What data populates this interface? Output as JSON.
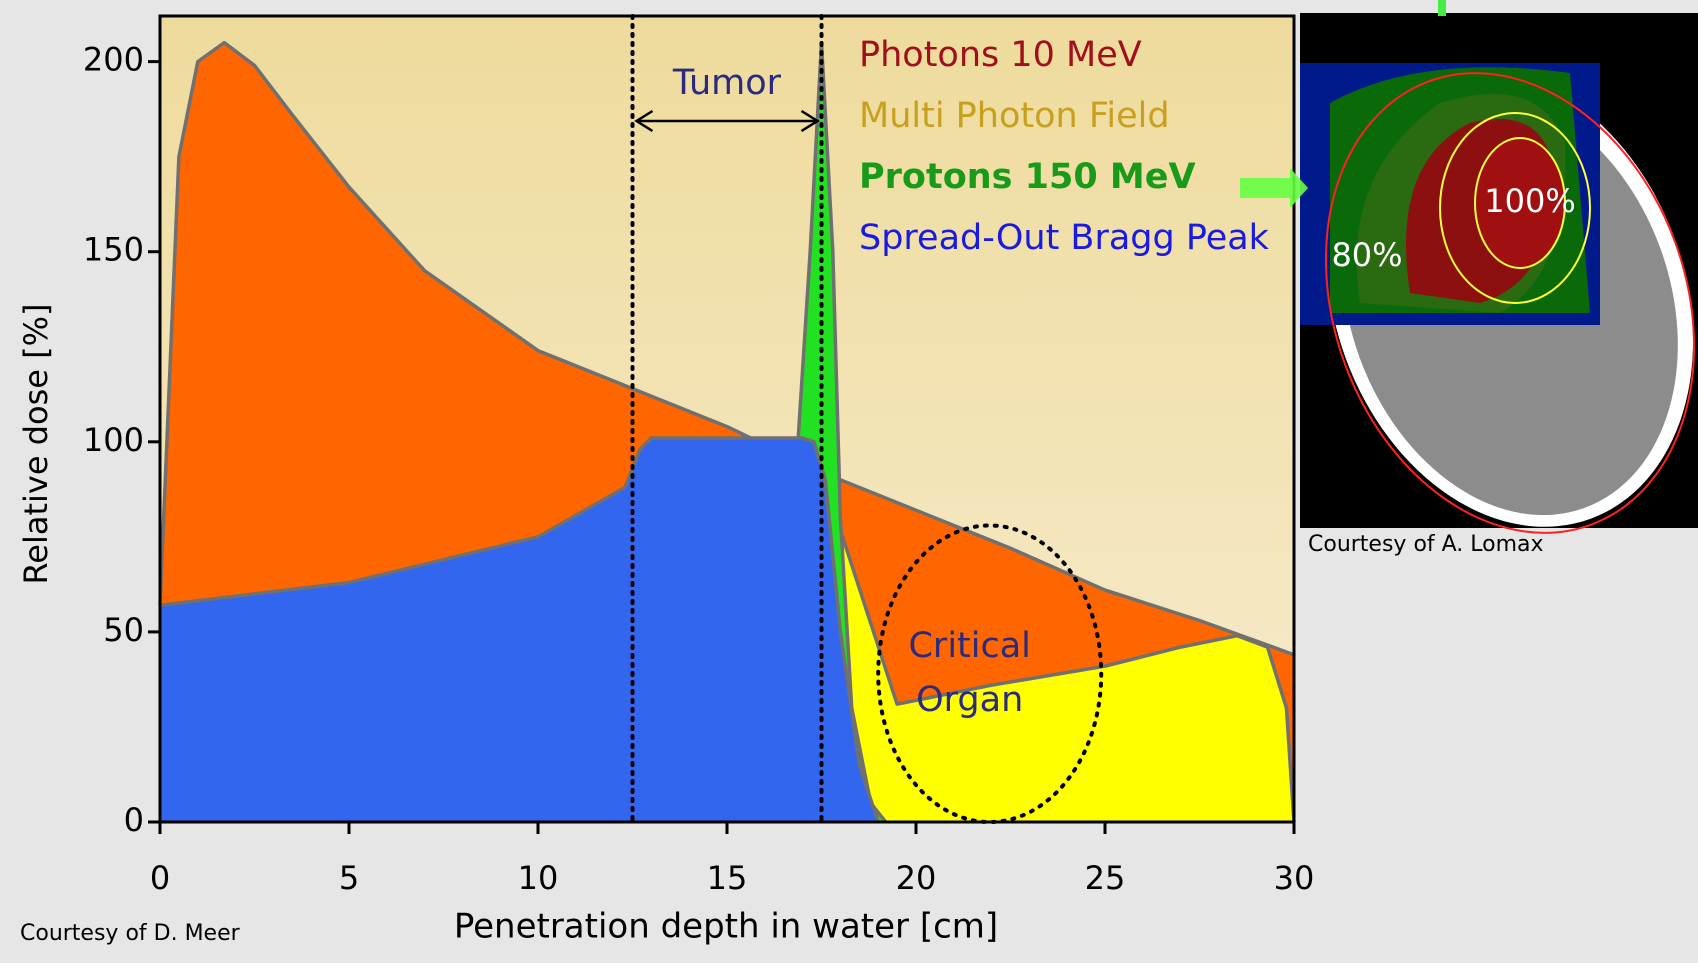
{
  "chart_data": {
    "type": "area",
    "xlabel": "Penetration depth in water [cm]",
    "ylabel": "Relative dose  [%]",
    "xlim": [
      0,
      30
    ],
    "ylim": [
      0,
      212
    ],
    "xticks": [
      0,
      5,
      10,
      15,
      20,
      25,
      30
    ],
    "yticks": [
      0,
      50,
      100,
      150,
      200
    ],
    "series": [
      {
        "name": "Photons 10 MeV",
        "color": "#ff6600",
        "label_color": "#a0101a",
        "x": [
          0,
          0.5,
          1,
          1.7,
          2.5,
          3.5,
          5,
          7,
          10,
          12.5,
          15,
          17.5,
          20,
          22.5,
          25,
          27.5,
          30
        ],
        "values": [
          57,
          175,
          200,
          205,
          199,
          186,
          167,
          145,
          124,
          114,
          104,
          92,
          82,
          72,
          61,
          53,
          44
        ]
      },
      {
        "name": "Multi Photon Field",
        "color": "#ffff00",
        "label_color": "#c8a020",
        "x": [
          17.5,
          19.5,
          22,
          25,
          27,
          28.5,
          29.3,
          29.8,
          30
        ],
        "values": [
          92,
          31,
          36,
          41,
          46,
          49,
          46,
          30,
          0
        ]
      },
      {
        "name": "Protons 150 MeV",
        "color": "#22e022",
        "label_color": "#1a9a1a",
        "x": [
          0,
          5,
          10,
          12.5,
          15,
          16,
          16.8,
          17.2,
          17.5,
          17.8,
          18,
          18.3,
          18.8,
          19.2
        ],
        "values": [
          20,
          22,
          25,
          28,
          37,
          52,
          88,
          150,
          205,
          150,
          80,
          30,
          5,
          0
        ]
      },
      {
        "name": "Spread-Out Bragg Peak",
        "color": "#3366ee",
        "label_color": "#1a1ae0",
        "x": [
          0,
          5,
          10,
          12.3,
          12.7,
          13,
          15,
          17,
          17.3,
          17.6,
          18,
          18.5,
          19
        ],
        "values": [
          57,
          63,
          75,
          88,
          98,
          101,
          101,
          101,
          100,
          90,
          50,
          15,
          0
        ]
      }
    ],
    "tumor": {
      "text": "Tumor",
      "xrange": [
        12.5,
        17.5
      ]
    },
    "critical_organ": {
      "lines": [
        "Critical",
        "Organ"
      ],
      "xrange": [
        19,
        24.9
      ],
      "yrange": [
        0,
        78
      ]
    },
    "source": "Courtesy of D. Meer"
  },
  "image": {
    "labels": [
      "100%",
      "80%"
    ],
    "caption": "Courtesy of A. Lomax"
  }
}
